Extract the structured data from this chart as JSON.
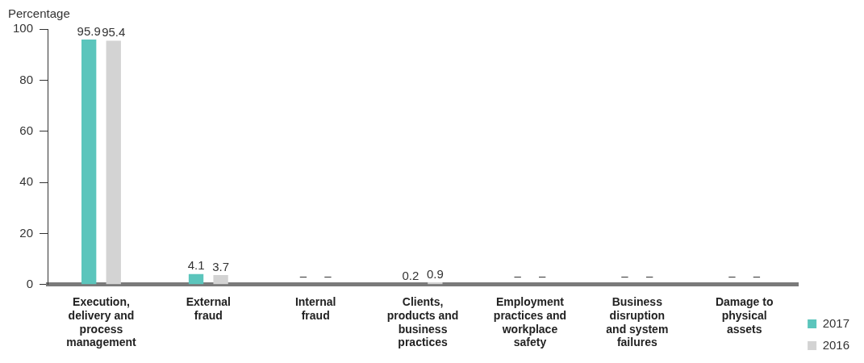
{
  "chart_data": {
    "type": "bar",
    "ylabel": "Percentage",
    "categories": [
      "Execution, delivery and process management",
      "External fraud",
      "Internal fraud",
      "Clients, products and business practices",
      "Employment practices and workplace safety",
      "Business disruption and system failures",
      "Damage to physical assets"
    ],
    "series": [
      {
        "name": "2017",
        "color": "#5bc5bc",
        "values": [
          95.9,
          4.1,
          null,
          0.2,
          null,
          null,
          null
        ],
        "value_labels": [
          "95.9",
          "4.1",
          "–",
          "0.2",
          "–",
          "–",
          "–"
        ]
      },
      {
        "name": "2016",
        "color": "#d3d3d3",
        "values": [
          95.4,
          3.7,
          null,
          0.9,
          null,
          null,
          null
        ],
        "value_labels": [
          "95.4",
          "3.7",
          "–",
          "0.9",
          "–",
          "–",
          "–"
        ]
      }
    ],
    "ylim": [
      0,
      100
    ],
    "yticks": [
      0,
      20,
      40,
      60,
      80,
      100
    ],
    "grid": false,
    "legend": "bottom right"
  }
}
